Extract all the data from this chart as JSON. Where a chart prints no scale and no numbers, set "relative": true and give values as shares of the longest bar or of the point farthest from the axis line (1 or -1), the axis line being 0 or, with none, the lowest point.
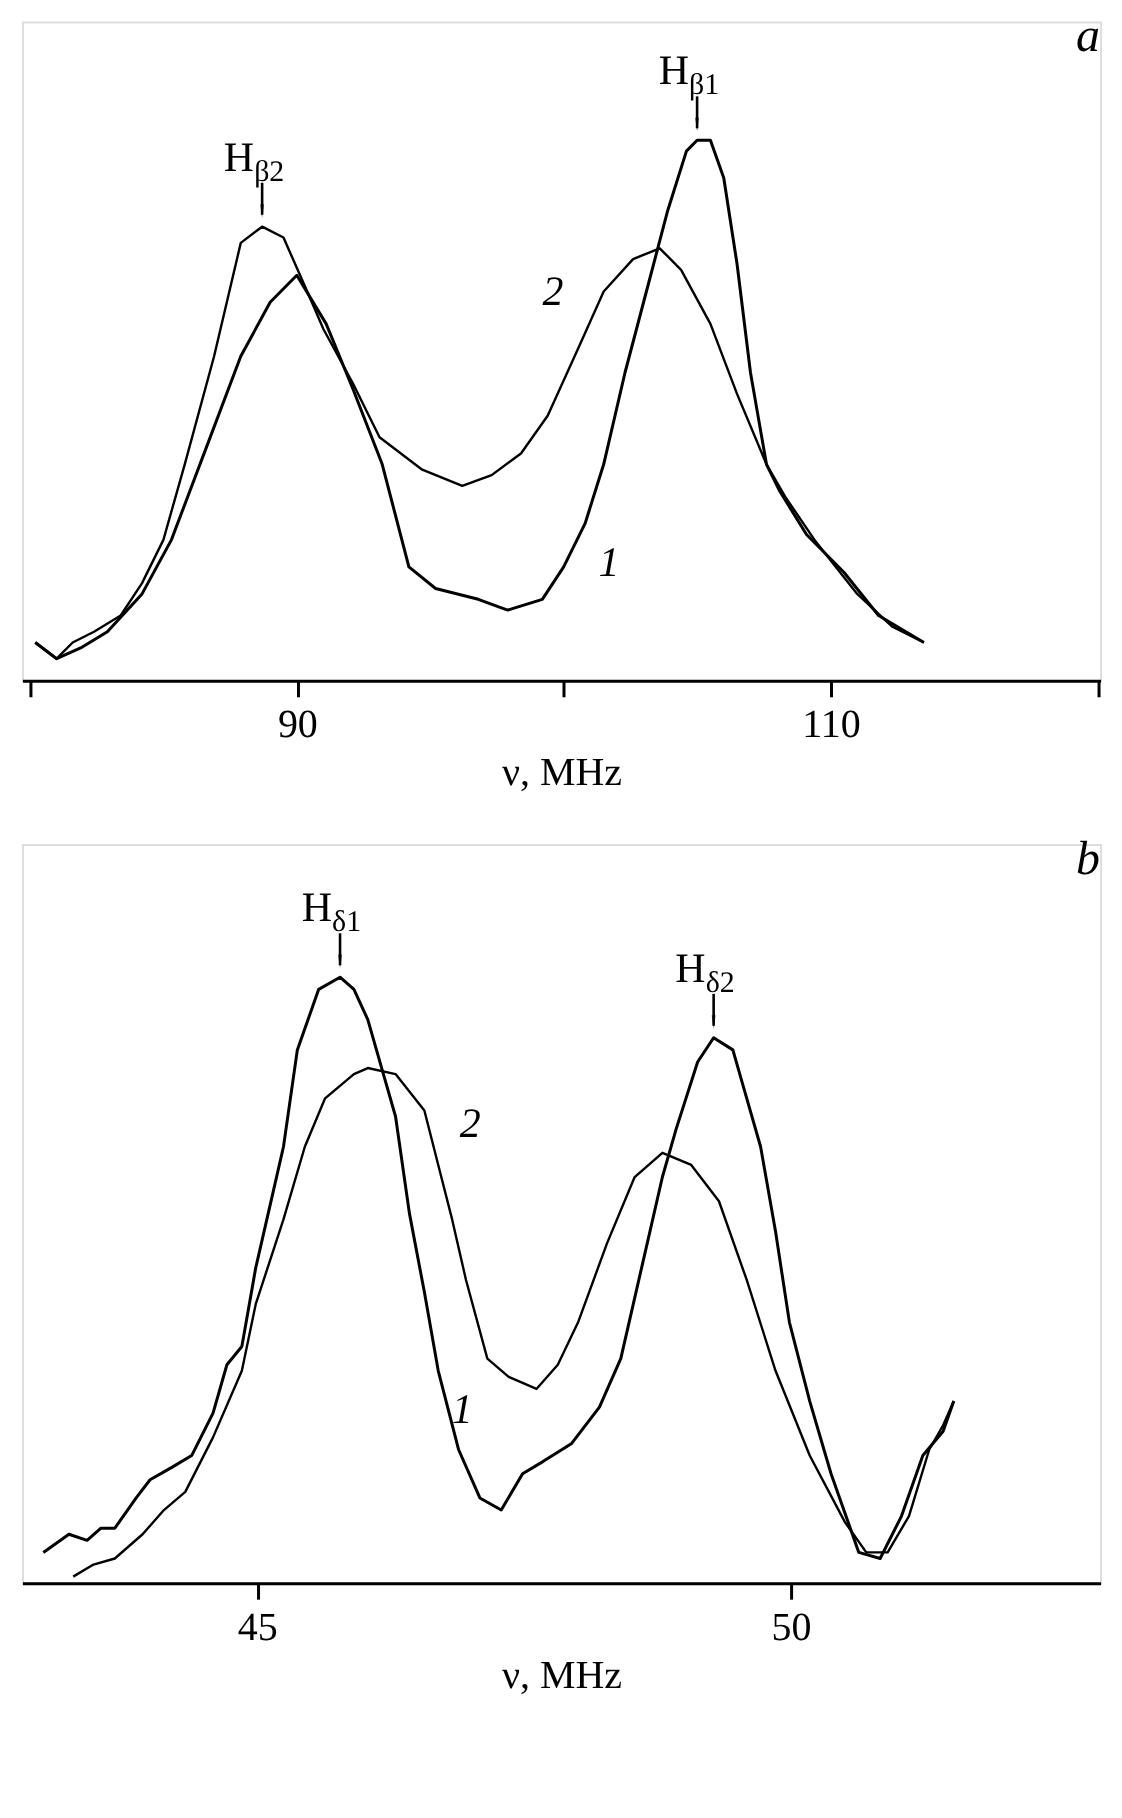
{
  "chart_data": [
    {
      "type": "line",
      "title": "a",
      "xlabel": "ν, MHz",
      "relative": true,
      "xlim": [
        79.7,
        120.1
      ],
      "xticks": [
        {
          "value": 80,
          "label": null
        },
        90,
        {
          "value": 100,
          "label": null
        },
        110,
        {
          "value": 120,
          "label": null
        }
      ],
      "tick_labels": "x",
      "grid": false,
      "marker": "none",
      "line_style": "solid",
      "series": [
        {
          "name": "1",
          "color": "#000000",
          "x": [
            80.2,
            81.0,
            81.9,
            82.9,
            84.2,
            85.3,
            86.6,
            87.9,
            89.0,
            90.0,
            91.1,
            92.1,
            93.2,
            94.2,
            95.2,
            96.8,
            97.9,
            99.2,
            100.0,
            100.8,
            101.5,
            102.3,
            103.1,
            103.9,
            104.6,
            105.0,
            105.5,
            106.0,
            106.5,
            107.0,
            107.6,
            108.1,
            109.1,
            110.5,
            111.8,
            113.5
          ],
          "values": [
            0.07,
            0.04,
            0.06,
            0.09,
            0.16,
            0.26,
            0.43,
            0.6,
            0.7,
            0.75,
            0.66,
            0.54,
            0.4,
            0.21,
            0.17,
            0.15,
            0.13,
            0.15,
            0.21,
            0.29,
            0.4,
            0.57,
            0.72,
            0.87,
            0.98,
            1.0,
            1.0,
            0.93,
            0.77,
            0.57,
            0.4,
            0.35,
            0.27,
            0.2,
            0.12,
            0.07
          ]
        },
        {
          "name": "2",
          "color": "#000000",
          "x": [
            80.2,
            81.0,
            81.6,
            82.4,
            83.4,
            84.2,
            85.0,
            85.8,
            86.9,
            87.9,
            88.7,
            89.5,
            90.3,
            91.0,
            92.1,
            93.1,
            94.7,
            96.2,
            97.3,
            98.4,
            99.4,
            100.5,
            101.5,
            102.6,
            103.6,
            104.4,
            105.5,
            106.5,
            107.6,
            108.3,
            109.4,
            111.0,
            112.3,
            113.5
          ],
          "values": [
            0.07,
            0.04,
            0.07,
            0.09,
            0.12,
            0.18,
            0.26,
            0.4,
            0.6,
            0.81,
            0.84,
            0.82,
            0.73,
            0.65,
            0.55,
            0.45,
            0.39,
            0.36,
            0.38,
            0.42,
            0.49,
            0.61,
            0.72,
            0.78,
            0.8,
            0.76,
            0.66,
            0.53,
            0.4,
            0.34,
            0.26,
            0.16,
            0.1,
            0.07
          ]
        }
      ],
      "annotations": [
        {
          "text": "H$_{β2}$",
          "x": 88.7,
          "y": 0.84
        },
        {
          "text": "H$_{β1}$",
          "x": 105.0,
          "y": 1.0
        }
      ]
    },
    {
      "type": "line",
      "title": "b",
      "xlabel": "ν, MHz",
      "relative": true,
      "xlim": [
        42.8,
        52.9
      ],
      "xticks": [
        45,
        50
      ],
      "tick_labels": "x",
      "grid": false,
      "marker": "none",
      "line_style": "solid",
      "series": [
        {
          "name": "1",
          "color": "#000000",
          "x": [
            43.0,
            43.24,
            43.41,
            43.54,
            43.67,
            43.87,
            44.0,
            44.2,
            44.39,
            44.59,
            44.72,
            44.86,
            44.99,
            45.12,
            45.25,
            45.38,
            45.58,
            45.78,
            45.91,
            46.04,
            46.17,
            46.3,
            46.43,
            46.57,
            46.7,
            46.89,
            47.09,
            47.29,
            47.49,
            47.68,
            47.95,
            48.21,
            48.41,
            48.54,
            48.67,
            48.8,
            48.93,
            49.13,
            49.28,
            49.46,
            49.59,
            49.72,
            49.86,
            49.99,
            50.18,
            50.38,
            50.64,
            50.84,
            51.04,
            51.24,
            51.43,
            51.53
          ],
          "values": [
            0.05,
            0.08,
            0.07,
            0.09,
            0.09,
            0.14,
            0.17,
            0.19,
            0.21,
            0.28,
            0.36,
            0.39,
            0.52,
            0.62,
            0.72,
            0.88,
            0.98,
            1.0,
            0.98,
            0.93,
            0.85,
            0.77,
            0.61,
            0.48,
            0.35,
            0.22,
            0.14,
            0.12,
            0.18,
            0.2,
            0.23,
            0.29,
            0.37,
            0.47,
            0.57,
            0.67,
            0.75,
            0.86,
            0.9,
            0.88,
            0.8,
            0.72,
            0.58,
            0.43,
            0.3,
            0.18,
            0.05,
            0.04,
            0.11,
            0.21,
            0.25,
            0.3
          ]
        },
        {
          "name": "2",
          "color": "#000000",
          "x": [
            43.28,
            43.47,
            43.67,
            43.93,
            44.13,
            44.33,
            44.59,
            44.86,
            44.99,
            45.25,
            45.45,
            45.64,
            45.91,
            46.04,
            46.3,
            46.57,
            46.7,
            46.83,
            46.96,
            47.16,
            47.36,
            47.62,
            47.82,
            48.01,
            48.28,
            48.54,
            48.8,
            49.07,
            49.33,
            49.59,
            49.86,
            50.18,
            50.51,
            50.71,
            50.91,
            51.11,
            51.3,
            51.43,
            51.53
          ],
          "values": [
            0.01,
            0.03,
            0.04,
            0.08,
            0.12,
            0.15,
            0.24,
            0.35,
            0.46,
            0.6,
            0.72,
            0.8,
            0.84,
            0.85,
            0.84,
            0.78,
            0.69,
            0.6,
            0.5,
            0.37,
            0.34,
            0.32,
            0.36,
            0.43,
            0.56,
            0.67,
            0.71,
            0.69,
            0.63,
            0.5,
            0.35,
            0.21,
            0.1,
            0.05,
            0.05,
            0.11,
            0.22,
            0.26,
            0.3
          ]
        }
      ],
      "annotations": [
        {
          "text": "H$_{δ1}$",
          "x": 45.78,
          "y": 1.0
        },
        {
          "text": "H$_{δ2}$",
          "x": 49.28,
          "y": 0.9
        }
      ]
    }
  ]
}
